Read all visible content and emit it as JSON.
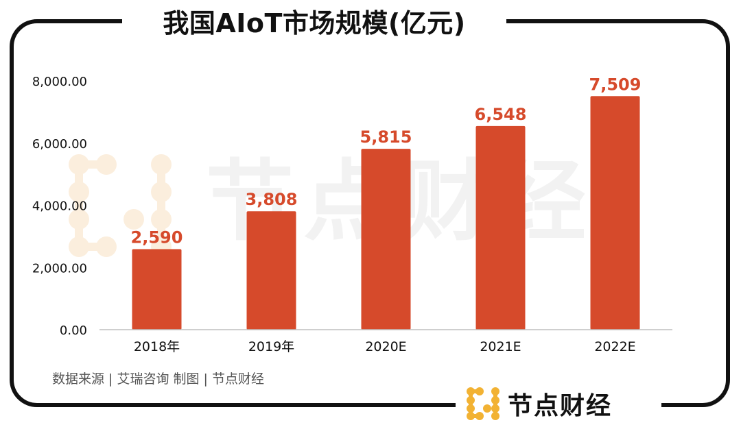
{
  "title": "我国AIoT市场规模(亿元)",
  "source_text": "数据来源 | 艾瑞咨询  制图 | 节点财经",
  "brand": {
    "name": "节点财经",
    "logo_icon": "node-dots-logo",
    "logo_color": "#f2b233"
  },
  "watermark": {
    "text": "节点财经"
  },
  "colors": {
    "bar": "#d64a2b",
    "label": "#d64a2b",
    "frame": "#111111"
  },
  "chart_data": {
    "type": "bar",
    "title": "我国AIoT市场规模(亿元)",
    "categories": [
      "2018年",
      "2019年",
      "2020E",
      "2021E",
      "2022E"
    ],
    "values": [
      2590,
      3808,
      5815,
      6548,
      7509
    ],
    "value_labels": [
      "2,590",
      "3,808",
      "5,815",
      "6,548",
      "7,509"
    ],
    "ylim": [
      0,
      8000
    ],
    "yticks": [
      0,
      2000,
      4000,
      6000,
      8000
    ],
    "ytick_labels": [
      "0.00",
      "2,000.00",
      "4,000.00",
      "6,000.00",
      "8,000.00"
    ],
    "grid": false,
    "xlabel": "",
    "ylabel": ""
  }
}
